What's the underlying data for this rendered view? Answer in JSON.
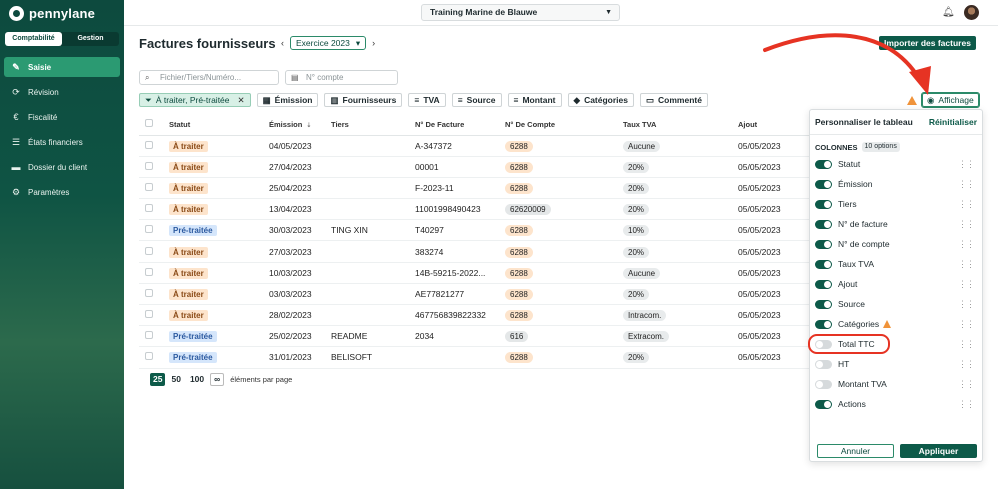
{
  "brand": {
    "name": "pennylane"
  },
  "mode_switch": {
    "tabs": [
      "Comptabilité",
      "Gestion"
    ],
    "active": "Comptabilité"
  },
  "sidebar": {
    "items": [
      {
        "label": "Saisie",
        "icon": "pencil-icon",
        "active": true
      },
      {
        "label": "Révision",
        "icon": "refresh-icon"
      },
      {
        "label": "Fiscalité",
        "icon": "euro-icon"
      },
      {
        "label": "États financiers",
        "icon": "list-icon"
      },
      {
        "label": "Dossier du client",
        "icon": "folder-icon"
      },
      {
        "label": "Paramètres",
        "icon": "gear-icon"
      }
    ]
  },
  "topbar": {
    "company": "Training Marine de Blauwe"
  },
  "page": {
    "title": "Factures fournisseurs",
    "year": "Exercice 2023",
    "import_label": "Importer des factures",
    "search_placeholder": "Fichier/Tiers/Numéro...",
    "account_placeholder": "N° compte",
    "affichage_label": "Affichage"
  },
  "filters": [
    {
      "label": "À traiter, Pré-traitée",
      "active": true
    },
    {
      "label": "Émission",
      "icon": "calendar-icon"
    },
    {
      "label": "Fournisseurs",
      "icon": "building-icon"
    },
    {
      "label": "TVA",
      "icon": "filter-icon"
    },
    {
      "label": "Source",
      "icon": "filter-icon"
    },
    {
      "label": "Montant",
      "icon": "filter-icon"
    },
    {
      "label": "Catégories",
      "icon": "tag-icon"
    },
    {
      "label": "Commenté",
      "icon": "comment-icon"
    }
  ],
  "table": {
    "headers": [
      "Statut",
      "Émission",
      "Tiers",
      "N° De Facture",
      "N° De Compte",
      "Taux TVA",
      "Ajout"
    ],
    "rows": [
      {
        "statut": "À traiter",
        "emission": "04/05/2023",
        "tiers": "",
        "facture": "A-347372",
        "compte": "6288",
        "tva": "Aucune",
        "ajout": "05/05/2023"
      },
      {
        "statut": "À traiter",
        "emission": "27/04/2023",
        "tiers": "",
        "facture": "00001",
        "compte": "6288",
        "tva": "20%",
        "ajout": "05/05/2023"
      },
      {
        "statut": "À traiter",
        "emission": "25/04/2023",
        "tiers": "",
        "facture": "F-2023-11",
        "compte": "6288",
        "tva": "20%",
        "ajout": "05/05/2023"
      },
      {
        "statut": "À traiter",
        "emission": "13/04/2023",
        "tiers": "",
        "facture": "11001998490423",
        "compte": "62620009",
        "tva": "20%",
        "ajout": "05/05/2023"
      },
      {
        "statut": "Pré-traitée",
        "emission": "30/03/2023",
        "tiers": "TING XIN",
        "facture": "T40297",
        "compte": "6288",
        "tva": "10%",
        "ajout": "05/05/2023"
      },
      {
        "statut": "À traiter",
        "emission": "27/03/2023",
        "tiers": "",
        "facture": "383274",
        "compte": "6288",
        "tva": "20%",
        "ajout": "05/05/2023"
      },
      {
        "statut": "À traiter",
        "emission": "10/03/2023",
        "tiers": "",
        "facture": "14B-59215-2022...",
        "compte": "6288",
        "tva": "Aucune",
        "ajout": "05/05/2023"
      },
      {
        "statut": "À traiter",
        "emission": "03/03/2023",
        "tiers": "",
        "facture": "AE77821277",
        "compte": "6288",
        "tva": "20%",
        "ajout": "05/05/2023"
      },
      {
        "statut": "À traiter",
        "emission": "28/02/2023",
        "tiers": "",
        "facture": "467756839822332",
        "compte": "6288",
        "tva": "Intracom.",
        "ajout": "05/05/2023"
      },
      {
        "statut": "Pré-traitée",
        "emission": "25/02/2023",
        "tiers": "README",
        "facture": "2034",
        "compte": "616",
        "tva": "Extracom.",
        "ajout": "05/05/2023"
      },
      {
        "statut": "Pré-traitée",
        "emission": "31/01/2023",
        "tiers": "BELISOFT",
        "facture": "",
        "compte": "6288",
        "tva": "20%",
        "ajout": "05/05/2023"
      }
    ]
  },
  "pager": {
    "sizes": [
      "25",
      "50",
      "100",
      "∞"
    ],
    "active": "25",
    "label": "éléments par page"
  },
  "panel": {
    "title": "Personnaliser le tableau",
    "reset": "Réinitialiser",
    "columns_label": "COLONNES",
    "count": "10 options",
    "columns": [
      {
        "label": "Statut",
        "on": true
      },
      {
        "label": "Émission",
        "on": true
      },
      {
        "label": "Tiers",
        "on": true
      },
      {
        "label": "N° de facture",
        "on": true
      },
      {
        "label": "N° de compte",
        "on": true
      },
      {
        "label": "Taux TVA",
        "on": true
      },
      {
        "label": "Ajout",
        "on": true
      },
      {
        "label": "Source",
        "on": true
      },
      {
        "label": "Catégories",
        "on": true,
        "warning": true
      },
      {
        "label": "Total TTC",
        "on": false
      },
      {
        "label": "HT",
        "on": false
      },
      {
        "label": "Montant TVA",
        "on": false
      },
      {
        "label": "Actions",
        "on": true
      }
    ],
    "cancel": "Annuler",
    "apply": "Appliquer"
  },
  "colors": {
    "brand": "#0d5a49",
    "annotation": "#e63323"
  }
}
